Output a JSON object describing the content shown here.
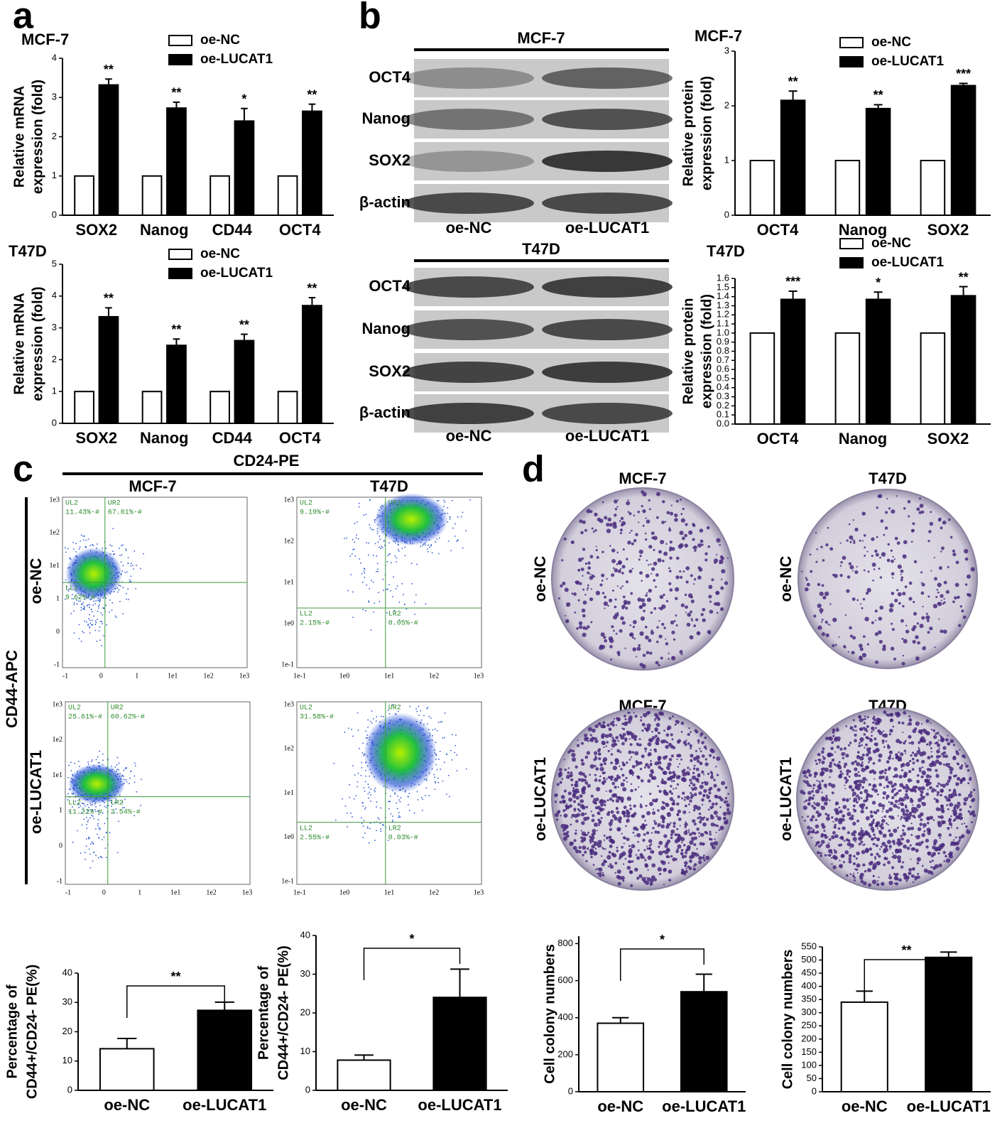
{
  "panel_labels": [
    "a",
    "b",
    "c",
    "d"
  ],
  "chart_data": [
    {
      "type": "bar",
      "title": "MCF-7",
      "ylabel": [
        "Relative mRNA",
        "expression (fold)"
      ],
      "categories": [
        "SOX2",
        "Nanog",
        "CD44",
        "OCT4"
      ],
      "series": [
        {
          "name": "oe-NC",
          "color": "#ffffff",
          "values": [
            1,
            1,
            1,
            1
          ]
        },
        {
          "name": "oe-LUCAT1",
          "color": "#000000",
          "values": [
            3.32,
            2.73,
            2.4,
            2.65
          ],
          "errors": [
            0.15,
            0.15,
            0.32,
            0.18
          ],
          "significance": [
            "**",
            "**",
            "*",
            "**"
          ]
        }
      ],
      "ylim": [
        0,
        4
      ],
      "yticks": [
        0,
        1,
        2,
        3,
        4
      ]
    },
    {
      "type": "bar",
      "title": "T47D",
      "ylabel": [
        "Relative mRNA",
        "expression (fold)"
      ],
      "categories": [
        "SOX2",
        "Nanog",
        "CD44",
        "OCT4"
      ],
      "series": [
        {
          "name": "oe-NC",
          "color": "#ffffff",
          "values": [
            1,
            1,
            1,
            1
          ]
        },
        {
          "name": "oe-LUCAT1",
          "color": "#000000",
          "values": [
            3.35,
            2.45,
            2.6,
            3.7
          ],
          "errors": [
            0.28,
            0.2,
            0.2,
            0.25
          ],
          "significance": [
            "**",
            "**",
            "**",
            "**"
          ]
        }
      ],
      "ylim": [
        0,
        5
      ],
      "yticks": [
        0,
        1,
        2,
        3,
        4,
        5
      ]
    },
    {
      "type": "bar",
      "title": "MCF-7",
      "ylabel": [
        "Relative protein",
        "expression (fold)"
      ],
      "categories": [
        "OCT4",
        "Nanog",
        "SOX2"
      ],
      "series": [
        {
          "name": "oe-NC",
          "color": "#ffffff",
          "values": [
            1,
            1,
            1
          ]
        },
        {
          "name": "oe-LUCAT1",
          "color": "#000000",
          "values": [
            2.1,
            1.95,
            2.37
          ],
          "errors": [
            0.17,
            0.07,
            0.04
          ],
          "significance": [
            "**",
            "**",
            "***"
          ]
        }
      ],
      "ylim": [
        0,
        3
      ],
      "yticks": [
        0,
        1,
        2,
        3
      ]
    },
    {
      "type": "bar",
      "title": "T47D",
      "ylabel": [
        "Relative protein",
        "expression (fold)"
      ],
      "categories": [
        "OCT4",
        "Nanog",
        "SOX2"
      ],
      "series": [
        {
          "name": "oe-NC",
          "color": "#ffffff",
          "values": [
            1,
            1,
            1
          ]
        },
        {
          "name": "oe-LUCAT1",
          "color": "#000000",
          "values": [
            1.37,
            1.37,
            1.41
          ],
          "errors": [
            0.09,
            0.08,
            0.1
          ],
          "significance": [
            "***",
            "*",
            "**"
          ]
        }
      ],
      "ylim": [
        0,
        1.6
      ],
      "yticks": [
        {
          "value": 0,
          "label": "0.0"
        },
        0.1,
        0.2,
        0.3,
        0.4,
        0.5,
        0.6,
        0.7,
        0.8,
        0.9,
        {
          "value": 1,
          "label": "1.0"
        },
        1.1,
        1.2,
        1.3,
        1.4,
        1.5,
        1.6
      ]
    },
    {
      "type": "bar",
      "ylabel": [
        "Percentage of",
        "CD44+/CD24- PE(%)"
      ],
      "categories": [
        "oe-NC",
        "oe-LUCAT1"
      ],
      "values": [
        14.2,
        27.3
      ],
      "errors": [
        3.5,
        2.8
      ],
      "colors": [
        "#ffffff",
        "#000000"
      ],
      "significance": "**",
      "ylim": [
        0,
        40
      ],
      "yticks": [
        0,
        10,
        20,
        30,
        40
      ]
    },
    {
      "type": "bar",
      "ylabel": [
        "Percentage of",
        "CD44+/CD24- PE(%)"
      ],
      "categories": [
        "oe-NC",
        "oe-LUCAT1"
      ],
      "values": [
        7.8,
        24
      ],
      "errors": [
        1.3,
        7.3
      ],
      "colors": [
        "#ffffff",
        "#000000"
      ],
      "significance": "*",
      "ylim": [
        0,
        40
      ],
      "yticks": [
        0,
        10,
        20,
        30,
        40
      ]
    },
    {
      "type": "bar",
      "ylabel": [
        "Cell colony numbers"
      ],
      "categories": [
        "oe-NC",
        "oe-LUCAT1"
      ],
      "values": [
        370,
        540
      ],
      "errors": [
        30,
        95
      ],
      "colors": [
        "#ffffff",
        "#000000"
      ],
      "significance": "*",
      "ylim": [
        0,
        840
      ],
      "yticks": [
        0,
        200,
        400,
        600,
        800
      ]
    },
    {
      "type": "bar",
      "ylabel": [
        "Cell colony numbers"
      ],
      "categories": [
        "oe-NC",
        "oe-LUCAT1"
      ],
      "values": [
        340,
        510
      ],
      "errors": [
        42,
        20
      ],
      "colors": [
        "#ffffff",
        "#000000"
      ],
      "significance": "**",
      "ylim": [
        0,
        550
      ],
      "yticks": [
        0,
        50,
        100,
        150,
        200,
        250,
        300,
        350,
        400,
        450,
        500,
        550
      ]
    }
  ],
  "blots": [
    {
      "title": "MCF-7",
      "rows": [
        "OCT4",
        "Nanog",
        "SOX2",
        "β-actin"
      ],
      "lanes": [
        "oe-NC",
        "oe-LUCAT1"
      ]
    },
    {
      "title": "T47D",
      "rows": [
        "OCT4",
        "Nanog",
        "SOX2",
        "β-actin"
      ],
      "lanes": [
        "oe-NC",
        "oe-LUCAT1"
      ]
    }
  ],
  "flow": {
    "x_label": "CD24-PE",
    "y_label": "CD44-APC",
    "columns": [
      "MCF-7",
      "T47D"
    ],
    "rows": [
      "oe-NC",
      "oe-LUCAT1"
    ],
    "xticks": [
      [
        "-1",
        "0",
        "1",
        "1e1",
        "1e2",
        "1e3"
      ],
      [
        "1e-1",
        "1e0",
        "1e1",
        "1e2",
        "1e3"
      ]
    ],
    "yticks": [
      [
        "-1",
        "0",
        "1",
        "1e1",
        "1e2",
        "1e3"
      ],
      [
        "1e-1",
        "1e0",
        "1e1",
        "1e2",
        "1e3"
      ]
    ],
    "plots": [
      {
        "quadrants": [
          {
            "name": "UL2",
            "value": "11.43%-#"
          },
          {
            "name": "UR2",
            "value": "67.61%-#"
          },
          {
            "name": "LL2",
            "value": "9.62%-#"
          }
        ]
      },
      {
        "quadrants": [
          {
            "name": "UL2",
            "value": "9.19%-#"
          },
          {
            "name": "UR2"
          },
          {
            "name": "LL2",
            "value": "2.15%-#"
          },
          {
            "name": "LR2",
            "value": "0.05%-#"
          }
        ]
      },
      {
        "quadrants": [
          {
            "name": "UL2",
            "value": "25.61%-#"
          },
          {
            "name": "UR2",
            "value": "60.62%-#"
          },
          {
            "name": "LL2",
            "value": "11.22%-#"
          },
          {
            "name": "LR2",
            "value": "2.54%-#"
          }
        ]
      },
      {
        "quadrants": [
          {
            "name": "UL2",
            "value": "31.58%-#"
          },
          {
            "name": "UR2"
          },
          {
            "name": "LL2",
            "value": "2.55%-#"
          },
          {
            "name": "LR2",
            "value": "0.03%-#"
          }
        ]
      }
    ]
  },
  "colony": {
    "titles": [
      "MCF-7",
      "T47D",
      "MCF-7",
      "T47D"
    ],
    "rows": [
      "oe-NC",
      "oe-LUCAT1"
    ]
  }
}
